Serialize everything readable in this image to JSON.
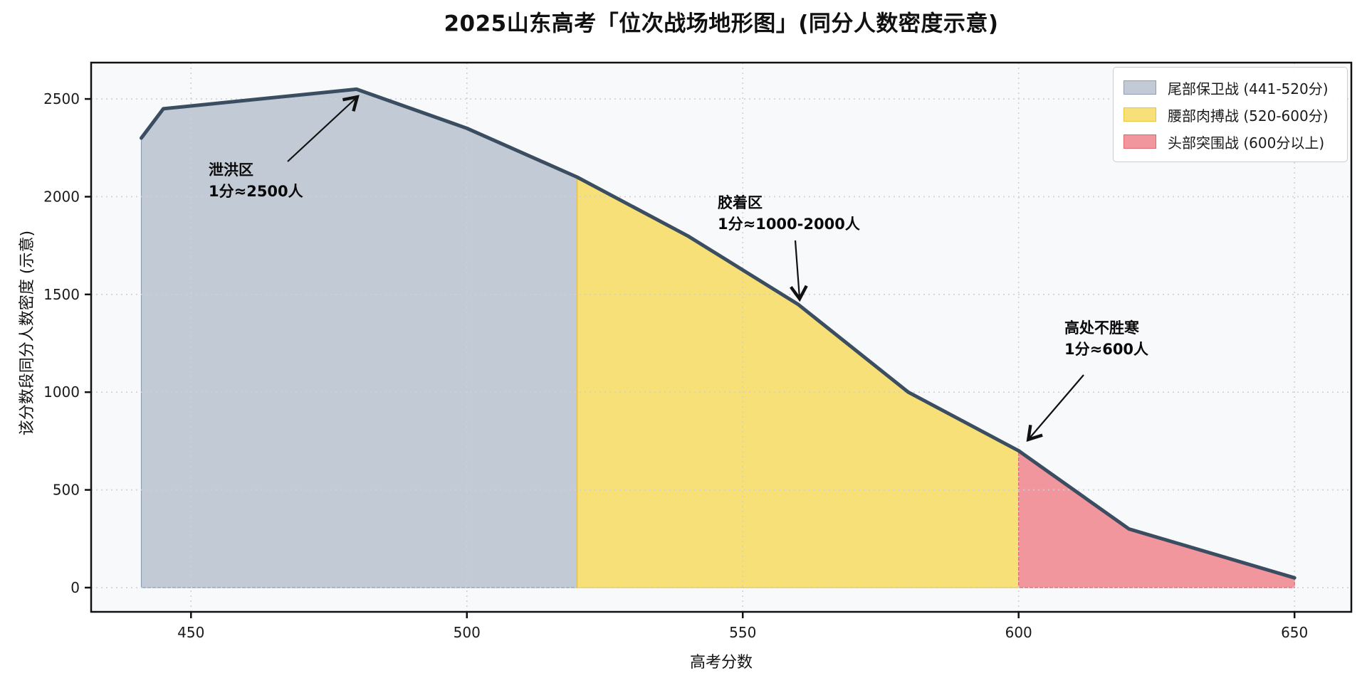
{
  "chart_data": {
    "type": "area",
    "title": "2025山东高考「位次战场地形图」(同分人数密度示意)",
    "xlabel": "高考分数",
    "ylabel": "该分数段同分人数密度 (示意)",
    "x": [
      441,
      445,
      480,
      500,
      520,
      540,
      560,
      580,
      600,
      620,
      650
    ],
    "y": [
      2300,
      2450,
      2550,
      2350,
      2100,
      1800,
      1450,
      1000,
      700,
      300,
      50
    ],
    "xticks": [
      450,
      500,
      550,
      600,
      650
    ],
    "yticks": [
      0,
      500,
      1000,
      1500,
      2000,
      2500
    ],
    "xlim": [
      431.9,
      660.3
    ],
    "ylim": [
      -124,
      2686
    ],
    "grid": true,
    "legend_position": "upper right",
    "line_color": "#3a4d61",
    "plot_bg": "#f8f9fb",
    "grid_color": "#cdd1d6",
    "frame_color": "#111111",
    "regions": [
      {
        "label": "尾部保卫战 (441-520分)",
        "from": 441,
        "to": 520,
        "fill": "#c2cad5",
        "edge": "#8e9db1"
      },
      {
        "label": "腰部肉搏战 (520-600分)",
        "from": 520,
        "to": 600,
        "fill": "#f8e078",
        "edge": "#e9c43f"
      },
      {
        "label": "头部突围战 (600分以上)",
        "from": 600,
        "to": 650,
        "fill": "#f1969c",
        "edge": "#e2646c"
      }
    ],
    "annotations": [
      {
        "line1": "泄洪区",
        "line2": "1分≈2500人",
        "points_to_x": 480,
        "points_to_y": 2550
      },
      {
        "line1": "胶着区",
        "line2": "1分≈1000-2000人",
        "points_to_x": 560,
        "points_to_y": 1450
      },
      {
        "line1": "高处不胜寒",
        "line2": "1分≈600人",
        "points_to_x": 600,
        "points_to_y": 700
      }
    ]
  }
}
